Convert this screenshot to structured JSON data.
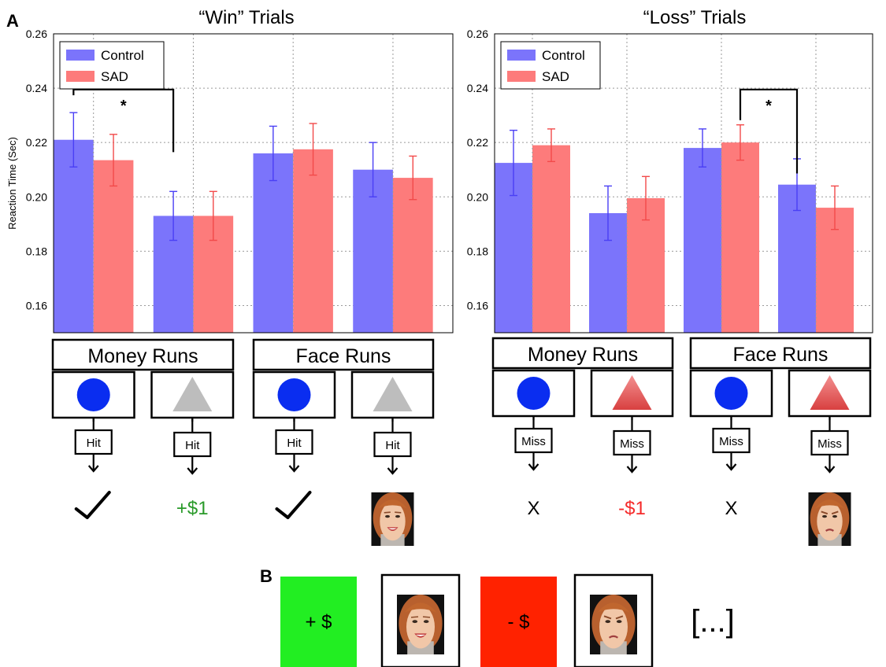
{
  "panel_labels": {
    "a": "A",
    "b": "B"
  },
  "colors": {
    "control": "#7b74fb",
    "sad": "#fd7b7b",
    "control_err": "#4a3ff5",
    "sad_err": "#f24a4a",
    "circle": "#0a2df0",
    "triangle_gray": "#bdbdbd",
    "triangle_red": "#e85a5a",
    "win_green": "#2a9a2a",
    "loss_red": "#f52a2a",
    "panel_b_green": "#22ee22",
    "panel_b_red": "#ff2200"
  },
  "chart_data": [
    {
      "type": "bar",
      "title": "“Win” Trials",
      "ylabel": "Reaction Time (Sec)",
      "ylim": [
        0.15,
        0.26
      ],
      "yticks": [
        "0.16",
        "0.18",
        "0.20",
        "0.22",
        "0.24",
        "0.26"
      ],
      "grid": true,
      "legend_placement": "top-left",
      "categories": [
        "Money Runs – Circle (Hit)",
        "Money Runs – Triangle (Hit)",
        "Face Runs – Circle (Hit)",
        "Face Runs – Triangle (Hit)"
      ],
      "series": [
        {
          "name": "Control",
          "values": [
            0.221,
            0.193,
            0.216,
            0.21
          ],
          "errors": [
            0.01,
            0.009,
            0.01,
            0.01
          ]
        },
        {
          "name": "SAD",
          "values": [
            0.2135,
            0.193,
            0.2175,
            0.207
          ],
          "errors": [
            0.0095,
            0.009,
            0.0095,
            0.008
          ]
        }
      ],
      "significance": {
        "label": "*",
        "bar_top_value": 0.2395,
        "from": "Control – Money Runs Circle",
        "to": "Money Runs Triangle"
      },
      "groups": [
        {
          "label": "Money Runs",
          "cues": [
            {
              "shape": "circle",
              "outcome_label": "Hit",
              "result_text": "✓",
              "result_color": "#000000"
            },
            {
              "shape": "triangle-gray",
              "outcome_label": "Hit",
              "result_text": "+$1",
              "result_color": "#2a9a2a"
            }
          ]
        },
        {
          "label": "Face Runs",
          "cues": [
            {
              "shape": "circle",
              "outcome_label": "Hit",
              "result_text": "✓",
              "result_color": "#000000"
            },
            {
              "shape": "triangle-gray",
              "outcome_label": "Hit",
              "result_text": "",
              "result_color": "#000000",
              "face": "smiling"
            }
          ]
        }
      ]
    },
    {
      "type": "bar",
      "title": "“Loss” Trials",
      "ylabel": "",
      "ylim": [
        0.15,
        0.26
      ],
      "yticks": [
        "0.16",
        "0.18",
        "0.20",
        "0.22",
        "0.24",
        "0.26"
      ],
      "grid": true,
      "legend_placement": "top-left",
      "categories": [
        "Money Runs – Circle (Miss)",
        "Money Runs – Triangle (Miss)",
        "Face Runs – Circle (Miss)",
        "Face Runs – Triangle (Miss)"
      ],
      "series": [
        {
          "name": "Control",
          "values": [
            0.2125,
            0.194,
            0.218,
            0.2045
          ],
          "errors": [
            0.012,
            0.01,
            0.007,
            0.0095
          ]
        },
        {
          "name": "SAD",
          "values": [
            0.219,
            0.1995,
            0.22,
            0.196
          ],
          "errors": [
            0.006,
            0.008,
            0.0065,
            0.008
          ]
        }
      ],
      "significance": {
        "label": "*",
        "bar_top_value": 0.2395,
        "from": "SAD – Face Runs Circle",
        "to": "Face Runs Triangle"
      },
      "groups": [
        {
          "label": "Money Runs",
          "cues": [
            {
              "shape": "circle",
              "outcome_label": "Miss",
              "result_text": "X",
              "result_color": "#000000"
            },
            {
              "shape": "triangle-red",
              "outcome_label": "Miss",
              "result_text": "-$1",
              "result_color": "#f52a2a"
            }
          ]
        },
        {
          "label": "Face Runs",
          "cues": [
            {
              "shape": "circle",
              "outcome_label": "Miss",
              "result_text": "X",
              "result_color": "#000000"
            },
            {
              "shape": "triangle-red",
              "outcome_label": "Miss",
              "result_text": "",
              "result_color": "#000000",
              "face": "angry"
            }
          ]
        }
      ]
    }
  ],
  "panel_b": {
    "items": [
      {
        "kind": "green-box",
        "text": "+ $"
      },
      {
        "kind": "face",
        "face": "smiling"
      },
      {
        "kind": "red-box",
        "text": "- $"
      },
      {
        "kind": "face",
        "face": "angry"
      },
      {
        "kind": "text",
        "text": "[...]"
      }
    ]
  }
}
